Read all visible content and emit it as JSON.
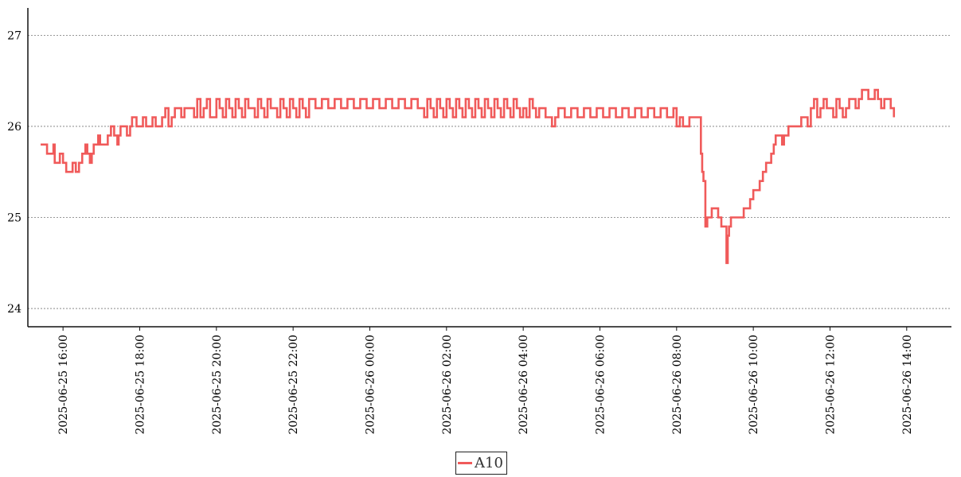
{
  "chart_data": {
    "type": "line",
    "title": "",
    "xlabel": "",
    "ylabel": "",
    "ylim": [
      23.8,
      27.3
    ],
    "xlim": [
      "2025-06-25 15:05",
      "2025-06-26 15:10"
    ],
    "yticks": [
      24,
      25,
      26,
      27
    ],
    "yticklabels": [
      "24",
      "25",
      "26",
      "27"
    ],
    "xticks": [
      "2025-06-25 16:00",
      "2025-06-25 18:00",
      "2025-06-25 20:00",
      "2025-06-25 22:00",
      "2025-06-26 00:00",
      "2025-06-26 02:00",
      "2025-06-26 04:00",
      "2025-06-26 06:00",
      "2025-06-26 08:00",
      "2025-06-26 10:00",
      "2025-06-26 12:00",
      "2025-06-26 14:00"
    ],
    "xticklabels": [
      "2025-06-25 16:00",
      "2025-06-25 18:00",
      "2025-06-25 20:00",
      "2025-06-25 22:00",
      "2025-06-26 00:00",
      "2025-06-26 02:00",
      "2025-06-26 04:00",
      "2025-06-26 06:00",
      "2025-06-26 08:00",
      "2025-06-26 10:00",
      "2025-06-26 12:00",
      "2025-06-26 14:00"
    ],
    "grid": "horizontal dotted",
    "legend_position": "bottom-center",
    "series": [
      {
        "name": "A10",
        "color": "#f05a5a",
        "points": [
          [
            "2025-06-25 15:25",
            25.8
          ],
          [
            "2025-06-25 15:30",
            25.8
          ],
          [
            "2025-06-25 15:35",
            25.7
          ],
          [
            "2025-06-25 15:45",
            25.8
          ],
          [
            "2025-06-25 15:47",
            25.6
          ],
          [
            "2025-06-25 15:55",
            25.7
          ],
          [
            "2025-06-25 16:00",
            25.6
          ],
          [
            "2025-06-25 16:05",
            25.5
          ],
          [
            "2025-06-25 16:15",
            25.6
          ],
          [
            "2025-06-25 16:20",
            25.5
          ],
          [
            "2025-06-25 16:25",
            25.6
          ],
          [
            "2025-06-25 16:30",
            25.7
          ],
          [
            "2025-06-25 16:35",
            25.8
          ],
          [
            "2025-06-25 16:38",
            25.7
          ],
          [
            "2025-06-25 16:42",
            25.6
          ],
          [
            "2025-06-25 16:45",
            25.7
          ],
          [
            "2025-06-25 16:48",
            25.8
          ],
          [
            "2025-06-25 16:55",
            25.9
          ],
          [
            "2025-06-25 16:58",
            25.8
          ],
          [
            "2025-06-25 17:10",
            25.9
          ],
          [
            "2025-06-25 17:15",
            26.0
          ],
          [
            "2025-06-25 17:20",
            25.9
          ],
          [
            "2025-06-25 17:25",
            25.8
          ],
          [
            "2025-06-25 17:27",
            25.9
          ],
          [
            "2025-06-25 17:30",
            26.0
          ],
          [
            "2025-06-25 17:40",
            25.9
          ],
          [
            "2025-06-25 17:45",
            26.0
          ],
          [
            "2025-06-25 17:48",
            26.1
          ],
          [
            "2025-06-25 17:55",
            26.0
          ],
          [
            "2025-06-25 18:05",
            26.1
          ],
          [
            "2025-06-25 18:10",
            26.0
          ],
          [
            "2025-06-25 18:20",
            26.1
          ],
          [
            "2025-06-25 18:25",
            26.0
          ],
          [
            "2025-06-25 18:35",
            26.1
          ],
          [
            "2025-06-25 18:40",
            26.2
          ],
          [
            "2025-06-25 18:45",
            26.0
          ],
          [
            "2025-06-25 18:50",
            26.1
          ],
          [
            "2025-06-25 18:55",
            26.2
          ],
          [
            "2025-06-25 19:05",
            26.1
          ],
          [
            "2025-06-25 19:10",
            26.2
          ],
          [
            "2025-06-25 19:25",
            26.1
          ],
          [
            "2025-06-25 19:30",
            26.3
          ],
          [
            "2025-06-25 19:35",
            26.1
          ],
          [
            "2025-06-25 19:40",
            26.2
          ],
          [
            "2025-06-25 19:45",
            26.3
          ],
          [
            "2025-06-25 19:50",
            26.1
          ],
          [
            "2025-06-25 20:00",
            26.3
          ],
          [
            "2025-06-25 20:05",
            26.2
          ],
          [
            "2025-06-25 20:10",
            26.1
          ],
          [
            "2025-06-25 20:15",
            26.3
          ],
          [
            "2025-06-25 20:20",
            26.2
          ],
          [
            "2025-06-25 20:25",
            26.1
          ],
          [
            "2025-06-25 20:30",
            26.3
          ],
          [
            "2025-06-25 20:35",
            26.2
          ],
          [
            "2025-06-25 20:40",
            26.1
          ],
          [
            "2025-06-25 20:45",
            26.3
          ],
          [
            "2025-06-25 20:50",
            26.2
          ],
          [
            "2025-06-25 21:00",
            26.1
          ],
          [
            "2025-06-25 21:05",
            26.3
          ],
          [
            "2025-06-25 21:10",
            26.2
          ],
          [
            "2025-06-25 21:15",
            26.1
          ],
          [
            "2025-06-25 21:20",
            26.3
          ],
          [
            "2025-06-25 21:25",
            26.2
          ],
          [
            "2025-06-25 21:35",
            26.1
          ],
          [
            "2025-06-25 21:40",
            26.3
          ],
          [
            "2025-06-25 21:45",
            26.2
          ],
          [
            "2025-06-25 21:50",
            26.1
          ],
          [
            "2025-06-25 21:55",
            26.3
          ],
          [
            "2025-06-25 22:00",
            26.2
          ],
          [
            "2025-06-25 22:05",
            26.1
          ],
          [
            "2025-06-25 22:10",
            26.3
          ],
          [
            "2025-06-25 22:15",
            26.2
          ],
          [
            "2025-06-25 22:20",
            26.1
          ],
          [
            "2025-06-25 22:25",
            26.3
          ],
          [
            "2025-06-25 22:35",
            26.2
          ],
          [
            "2025-06-25 22:45",
            26.3
          ],
          [
            "2025-06-25 22:55",
            26.2
          ],
          [
            "2025-06-25 23:05",
            26.3
          ],
          [
            "2025-06-25 23:15",
            26.2
          ],
          [
            "2025-06-25 23:25",
            26.3
          ],
          [
            "2025-06-25 23:35",
            26.2
          ],
          [
            "2025-06-25 23:45",
            26.3
          ],
          [
            "2025-06-25 23:55",
            26.2
          ],
          [
            "2025-06-26 00:05",
            26.3
          ],
          [
            "2025-06-26 00:15",
            26.2
          ],
          [
            "2025-06-26 00:25",
            26.3
          ],
          [
            "2025-06-26 00:35",
            26.2
          ],
          [
            "2025-06-26 00:45",
            26.3
          ],
          [
            "2025-06-26 00:55",
            26.2
          ],
          [
            "2025-06-26 01:05",
            26.3
          ],
          [
            "2025-06-26 01:15",
            26.2
          ],
          [
            "2025-06-26 01:25",
            26.1
          ],
          [
            "2025-06-26 01:30",
            26.3
          ],
          [
            "2025-06-26 01:35",
            26.2
          ],
          [
            "2025-06-26 01:40",
            26.1
          ],
          [
            "2025-06-26 01:45",
            26.3
          ],
          [
            "2025-06-26 01:50",
            26.2
          ],
          [
            "2025-06-26 01:55",
            26.1
          ],
          [
            "2025-06-26 02:00",
            26.3
          ],
          [
            "2025-06-26 02:05",
            26.2
          ],
          [
            "2025-06-26 02:10",
            26.1
          ],
          [
            "2025-06-26 02:15",
            26.3
          ],
          [
            "2025-06-26 02:20",
            26.2
          ],
          [
            "2025-06-26 02:25",
            26.1
          ],
          [
            "2025-06-26 02:30",
            26.3
          ],
          [
            "2025-06-26 02:35",
            26.2
          ],
          [
            "2025-06-26 02:40",
            26.1
          ],
          [
            "2025-06-26 02:45",
            26.3
          ],
          [
            "2025-06-26 02:50",
            26.2
          ],
          [
            "2025-06-26 02:55",
            26.1
          ],
          [
            "2025-06-26 03:00",
            26.3
          ],
          [
            "2025-06-26 03:05",
            26.2
          ],
          [
            "2025-06-26 03:10",
            26.1
          ],
          [
            "2025-06-26 03:15",
            26.3
          ],
          [
            "2025-06-26 03:20",
            26.2
          ],
          [
            "2025-06-26 03:25",
            26.1
          ],
          [
            "2025-06-26 03:30",
            26.3
          ],
          [
            "2025-06-26 03:35",
            26.2
          ],
          [
            "2025-06-26 03:40",
            26.1
          ],
          [
            "2025-06-26 03:45",
            26.3
          ],
          [
            "2025-06-26 03:50",
            26.2
          ],
          [
            "2025-06-26 03:55",
            26.1
          ],
          [
            "2025-06-26 04:00",
            26.2
          ],
          [
            "2025-06-26 04:05",
            26.1
          ],
          [
            "2025-06-26 04:10",
            26.3
          ],
          [
            "2025-06-26 04:15",
            26.2
          ],
          [
            "2025-06-26 04:20",
            26.1
          ],
          [
            "2025-06-26 04:25",
            26.2
          ],
          [
            "2025-06-26 04:35",
            26.1
          ],
          [
            "2025-06-26 04:45",
            26.0
          ],
          [
            "2025-06-26 04:50",
            26.1
          ],
          [
            "2025-06-26 04:55",
            26.2
          ],
          [
            "2025-06-26 05:05",
            26.1
          ],
          [
            "2025-06-26 05:15",
            26.2
          ],
          [
            "2025-06-26 05:25",
            26.1
          ],
          [
            "2025-06-26 05:35",
            26.2
          ],
          [
            "2025-06-26 05:45",
            26.1
          ],
          [
            "2025-06-26 05:55",
            26.2
          ],
          [
            "2025-06-26 06:05",
            26.1
          ],
          [
            "2025-06-26 06:15",
            26.2
          ],
          [
            "2025-06-26 06:25",
            26.1
          ],
          [
            "2025-06-26 06:35",
            26.2
          ],
          [
            "2025-06-26 06:45",
            26.1
          ],
          [
            "2025-06-26 06:55",
            26.2
          ],
          [
            "2025-06-26 07:05",
            26.1
          ],
          [
            "2025-06-26 07:15",
            26.2
          ],
          [
            "2025-06-26 07:25",
            26.1
          ],
          [
            "2025-06-26 07:35",
            26.2
          ],
          [
            "2025-06-26 07:45",
            26.1
          ],
          [
            "2025-06-26 07:55",
            26.2
          ],
          [
            "2025-06-26 08:00",
            26.0
          ],
          [
            "2025-06-26 08:05",
            26.1
          ],
          [
            "2025-06-26 08:10",
            26.0
          ],
          [
            "2025-06-26 08:20",
            26.1
          ],
          [
            "2025-06-26 08:30",
            26.1
          ],
          [
            "2025-06-26 08:38",
            25.7
          ],
          [
            "2025-06-26 08:40",
            25.5
          ],
          [
            "2025-06-26 08:42",
            25.4
          ],
          [
            "2025-06-26 08:45",
            24.9
          ],
          [
            "2025-06-26 08:48",
            25.0
          ],
          [
            "2025-06-26 08:55",
            25.1
          ],
          [
            "2025-06-26 09:05",
            25.0
          ],
          [
            "2025-06-26 09:10",
            24.9
          ],
          [
            "2025-06-26 09:18",
            24.5
          ],
          [
            "2025-06-26 09:20",
            24.8
          ],
          [
            "2025-06-26 09:22",
            24.9
          ],
          [
            "2025-06-26 09:25",
            25.0
          ],
          [
            "2025-06-26 09:40",
            25.0
          ],
          [
            "2025-06-26 09:45",
            25.1
          ],
          [
            "2025-06-26 09:55",
            25.2
          ],
          [
            "2025-06-26 10:00",
            25.3
          ],
          [
            "2025-06-26 10:10",
            25.4
          ],
          [
            "2025-06-26 10:15",
            25.5
          ],
          [
            "2025-06-26 10:20",
            25.6
          ],
          [
            "2025-06-26 10:28",
            25.7
          ],
          [
            "2025-06-26 10:32",
            25.8
          ],
          [
            "2025-06-26 10:35",
            25.9
          ],
          [
            "2025-06-26 10:45",
            25.8
          ],
          [
            "2025-06-26 10:48",
            25.9
          ],
          [
            "2025-06-26 10:55",
            26.0
          ],
          [
            "2025-06-26 11:15",
            26.1
          ],
          [
            "2025-06-26 11:25",
            26.0
          ],
          [
            "2025-06-26 11:30",
            26.2
          ],
          [
            "2025-06-26 11:35",
            26.3
          ],
          [
            "2025-06-26 11:40",
            26.1
          ],
          [
            "2025-06-26 11:45",
            26.2
          ],
          [
            "2025-06-26 11:50",
            26.3
          ],
          [
            "2025-06-26 11:55",
            26.2
          ],
          [
            "2025-06-26 12:05",
            26.1
          ],
          [
            "2025-06-26 12:10",
            26.3
          ],
          [
            "2025-06-26 12:15",
            26.2
          ],
          [
            "2025-06-26 12:20",
            26.1
          ],
          [
            "2025-06-26 12:25",
            26.2
          ],
          [
            "2025-06-26 12:30",
            26.3
          ],
          [
            "2025-06-26 12:40",
            26.2
          ],
          [
            "2025-06-26 12:45",
            26.3
          ],
          [
            "2025-06-26 12:50",
            26.4
          ],
          [
            "2025-06-26 13:00",
            26.3
          ],
          [
            "2025-06-26 13:10",
            26.4
          ],
          [
            "2025-06-26 13:15",
            26.3
          ],
          [
            "2025-06-26 13:20",
            26.2
          ],
          [
            "2025-06-26 13:25",
            26.3
          ],
          [
            "2025-06-26 13:35",
            26.2
          ],
          [
            "2025-06-26 13:40",
            26.1
          ]
        ]
      }
    ]
  },
  "legend": {
    "label": "A10",
    "color": "#f05a5a"
  }
}
